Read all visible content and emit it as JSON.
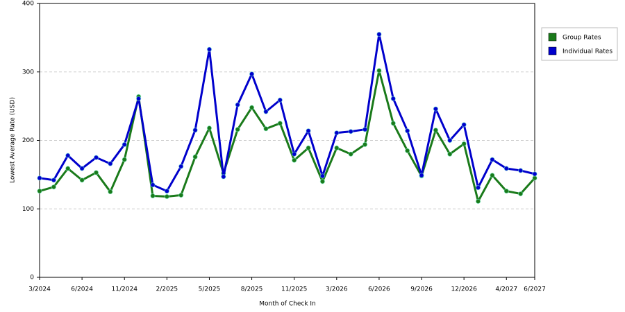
{
  "chart_data": {
    "type": "line",
    "xlabel": "Month of Check In",
    "ylabel": "Lowest Average Rate (USD)",
    "categories": [
      "3/2024",
      null,
      null,
      "6/2024",
      null,
      null,
      "11/2024",
      null,
      null,
      "2/2025",
      null,
      null,
      "5/2025",
      null,
      null,
      "8/2025",
      null,
      null,
      "11/2025",
      null,
      null,
      "3/2026",
      null,
      null,
      "6/2026",
      null,
      null,
      "9/2026",
      null,
      null,
      "12/2026",
      null,
      null,
      "4/2027",
      null,
      "6/2027"
    ],
    "series": [
      {
        "name": "Group Rates",
        "color": "#1a7a1a",
        "values": [
          126,
          132,
          159,
          142,
          153,
          125,
          172,
          264,
          119,
          118,
          120,
          176,
          218,
          152,
          216,
          248,
          217,
          225,
          171,
          189,
          140,
          189,
          180,
          194,
          302,
          225,
          185,
          148,
          215,
          180,
          195,
          111,
          149,
          126,
          122,
          145
        ]
      },
      {
        "name": "Individual Rates",
        "color": "#0000cc",
        "values": [
          145,
          142,
          178,
          159,
          175,
          166,
          194,
          261,
          135,
          126,
          162,
          215,
          333,
          147,
          252,
          297,
          242,
          259,
          180,
          214,
          148,
          211,
          213,
          216,
          355,
          261,
          214,
          149,
          246,
          200,
          223,
          131,
          172,
          159,
          156,
          151
        ]
      }
    ],
    "ylim": [
      0,
      400
    ],
    "yticks": [
      0,
      100,
      200,
      300,
      400
    ],
    "grid": true,
    "legend": "right"
  }
}
